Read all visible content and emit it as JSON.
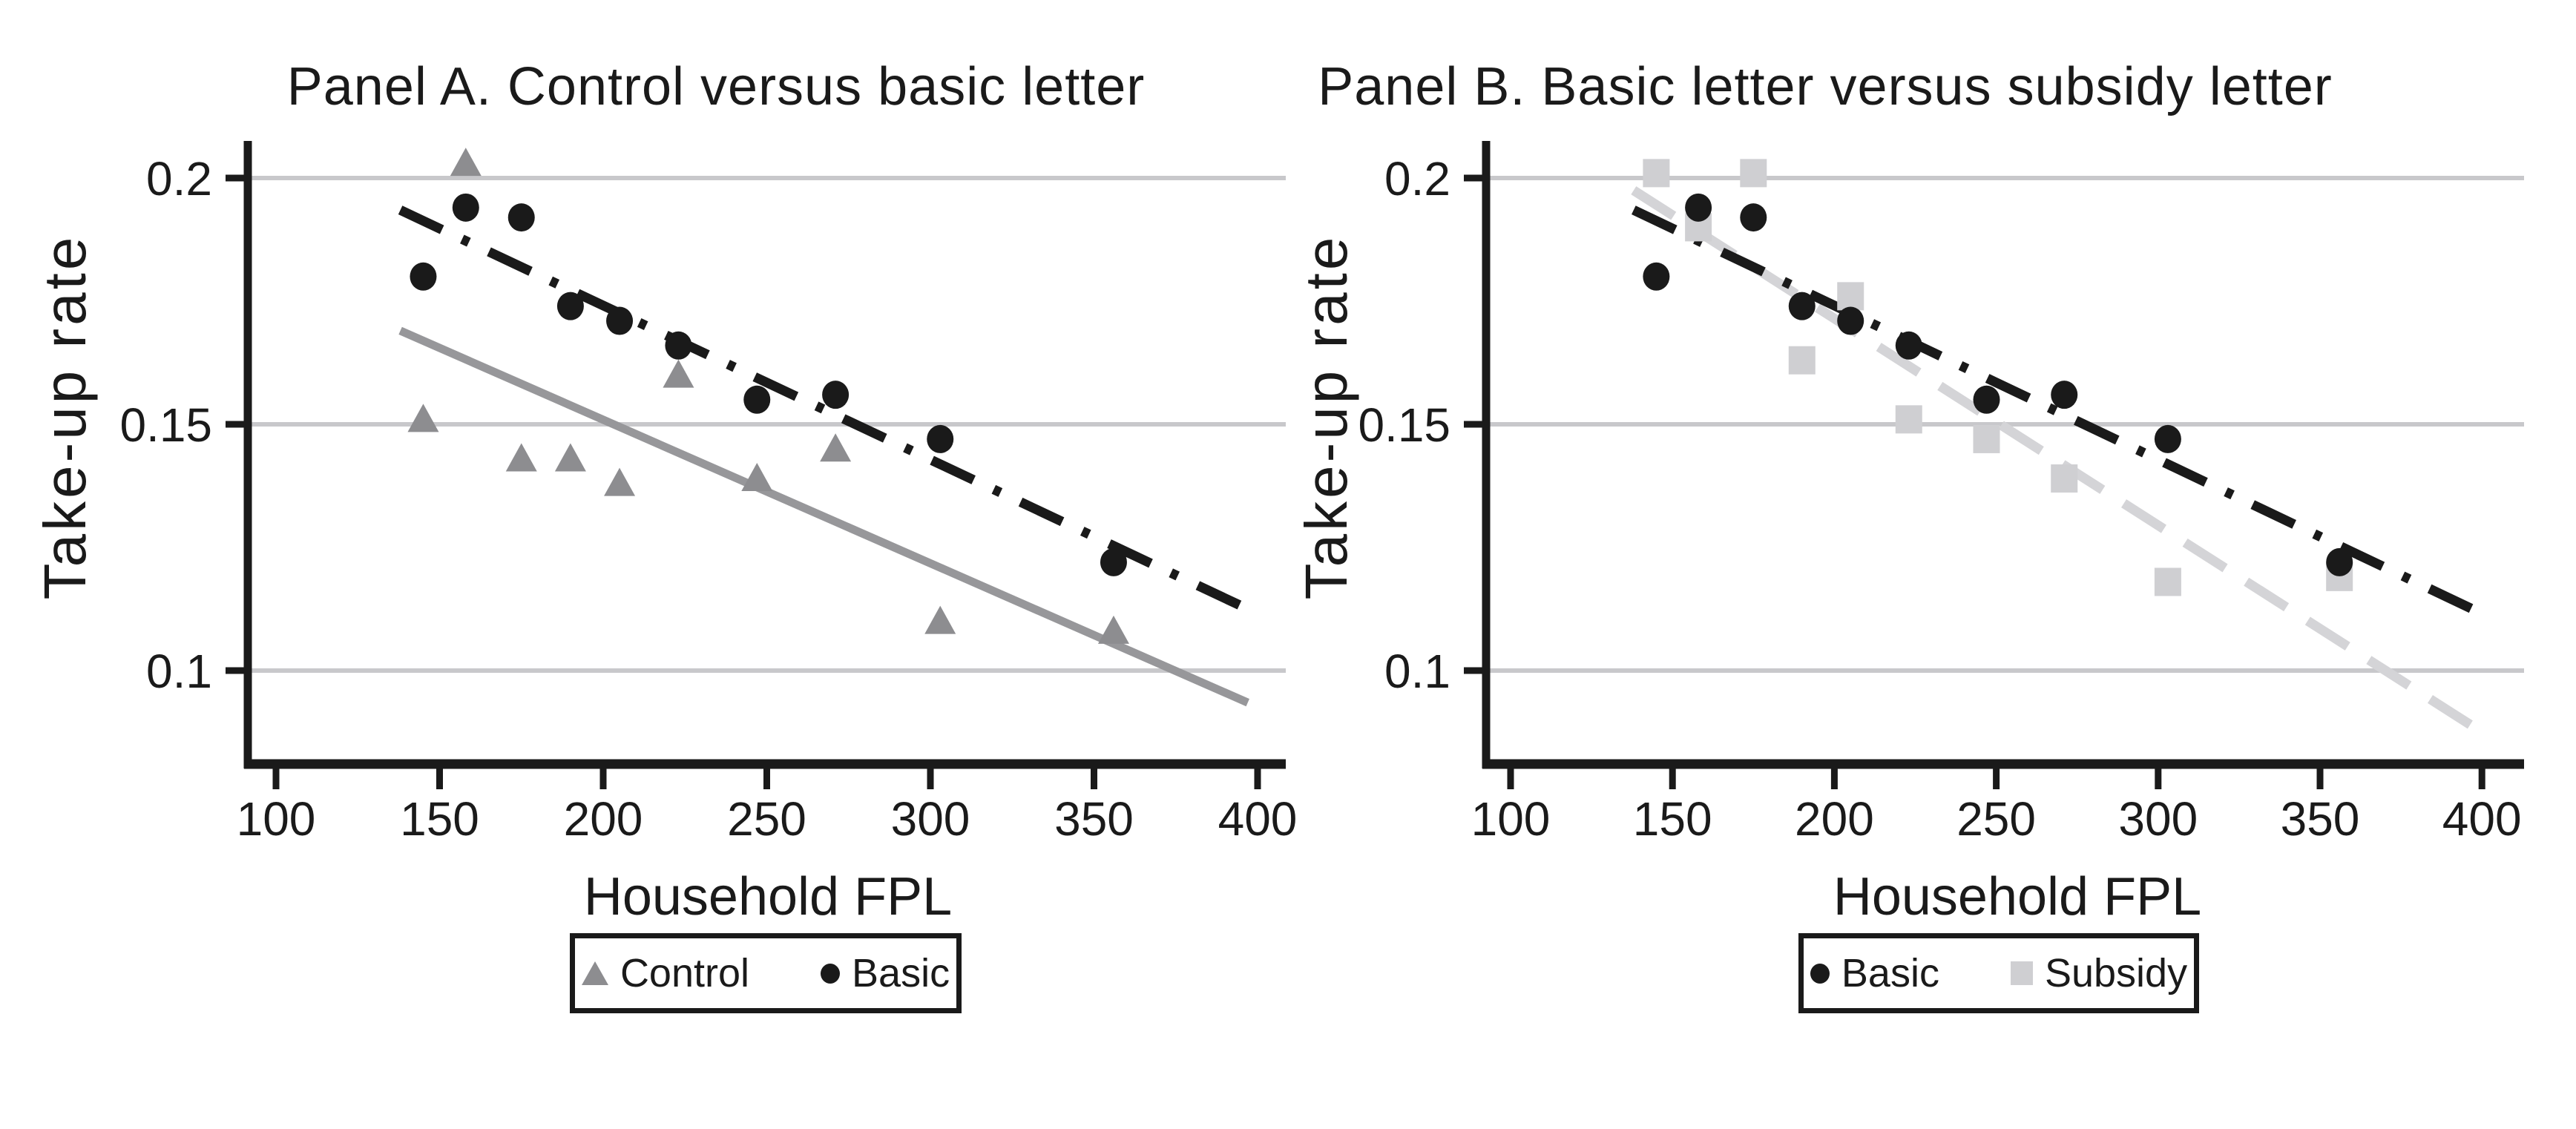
{
  "figure": {
    "background": "#ffffff",
    "colors": {
      "axis": "#1a1a1a",
      "grid": "#c8c8cb",
      "text": "#1a1a1a"
    }
  },
  "chart_data": [
    {
      "type": "scatter",
      "panel": "A",
      "title": "Panel A. Control versus basic letter",
      "xlabel": "Household FPL",
      "ylabel": "Take-up rate",
      "xlim": [
        90,
        410
      ],
      "ylim": [
        0.082,
        0.207
      ],
      "x_ticks": [
        100,
        150,
        200,
        250,
        300,
        350,
        400
      ],
      "y_ticks": [
        0.2,
        0.15,
        0.1
      ],
      "y_tick_labels": [
        "0.2",
        "0.15",
        "0.1"
      ],
      "grid": "horizontal-only",
      "legend_position": "bottom-center",
      "series": [
        {
          "name": "Control",
          "marker": "triangle",
          "color": "#8d8d90",
          "points": [
            [
              145,
              0.151
            ],
            [
              158,
              0.203
            ],
            [
              175,
              0.143
            ],
            [
              190,
              0.143
            ],
            [
              205,
              0.138
            ],
            [
              223,
              0.16
            ],
            [
              247,
              0.139
            ],
            [
              271,
              0.145
            ],
            [
              303,
              0.11
            ],
            [
              356,
              0.108
            ]
          ]
        },
        {
          "name": "Basic",
          "marker": "circle",
          "color": "#1a1a1a",
          "points": [
            [
              145,
              0.18
            ],
            [
              158,
              0.194
            ],
            [
              175,
              0.192
            ],
            [
              190,
              0.174
            ],
            [
              205,
              0.171
            ],
            [
              223,
              0.166
            ],
            [
              247,
              0.155
            ],
            [
              271,
              0.156
            ],
            [
              303,
              0.147
            ],
            [
              356,
              0.122
            ]
          ]
        }
      ],
      "fit_lines": [
        {
          "series": "Control",
          "style": "solid",
          "color": "#97979a",
          "from": [
            138,
            0.169
          ],
          "to": [
            397,
            0.0935
          ]
        },
        {
          "series": "Basic",
          "style": "dash-dot",
          "color": "#1a1a1a",
          "from": [
            138,
            0.1935
          ],
          "to": [
            397,
            0.1125
          ]
        }
      ]
    },
    {
      "type": "scatter",
      "panel": "B",
      "title": "Panel B. Basic letter versus subsidy letter",
      "xlabel": "Household FPL",
      "ylabel": "Take-up rate",
      "xlim": [
        90,
        410
      ],
      "ylim": [
        0.082,
        0.207
      ],
      "x_ticks": [
        100,
        150,
        200,
        250,
        300,
        350,
        400
      ],
      "y_ticks": [
        0.2,
        0.15,
        0.1
      ],
      "y_tick_labels": [
        "0.2",
        "0.15",
        "0.1"
      ],
      "grid": "horizontal-only",
      "legend_position": "bottom-center",
      "series": [
        {
          "name": "Basic",
          "marker": "circle",
          "color": "#1a1a1a",
          "points": [
            [
              145,
              0.18
            ],
            [
              158,
              0.194
            ],
            [
              175,
              0.192
            ],
            [
              190,
              0.174
            ],
            [
              205,
              0.171
            ],
            [
              223,
              0.166
            ],
            [
              247,
              0.155
            ],
            [
              271,
              0.156
            ],
            [
              303,
              0.147
            ],
            [
              356,
              0.122
            ]
          ]
        },
        {
          "name": "Subsidy",
          "marker": "square",
          "color": "#cfcfd2",
          "points": [
            [
              145,
              0.201
            ],
            [
              158,
              0.19
            ],
            [
              175,
              0.201
            ],
            [
              190,
              0.163
            ],
            [
              205,
              0.176
            ],
            [
              223,
              0.151
            ],
            [
              247,
              0.147
            ],
            [
              271,
              0.139
            ],
            [
              303,
              0.118
            ],
            [
              356,
              0.119
            ]
          ]
        }
      ],
      "fit_lines": [
        {
          "series": "Subsidy",
          "style": "dashed",
          "color": "#d4d4d7",
          "from": [
            138,
            0.1975
          ],
          "to": [
            400,
            0.0875
          ]
        },
        {
          "series": "Basic",
          "style": "dash-dot",
          "color": "#1a1a1a",
          "from": [
            138,
            0.1935
          ],
          "to": [
            397,
            0.1125
          ]
        }
      ]
    }
  ]
}
